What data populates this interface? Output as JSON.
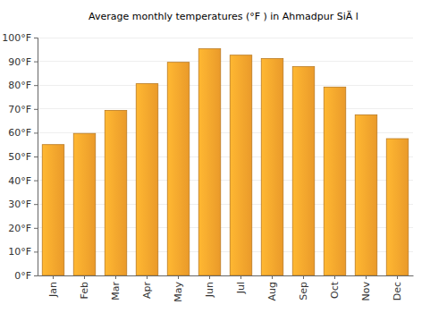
{
  "chart_data": {
    "type": "bar",
    "title": "Average monthly temperatures (°F ) in Ahmadpur SiÄ l",
    "categories": [
      "Jan",
      "Feb",
      "Mar",
      "Apr",
      "May",
      "Jun",
      "Jul",
      "Aug",
      "Sep",
      "Oct",
      "Nov",
      "Dec"
    ],
    "values": [
      55,
      59.7,
      69.4,
      80.6,
      89.6,
      95.3,
      92.6,
      91.2,
      87.8,
      79.2,
      67.5,
      57.5
    ],
    "color": "#f7a22c",
    "ylim": [
      0,
      100
    ],
    "yticks": [
      {
        "value": 0,
        "label": "0°F"
      },
      {
        "value": 10,
        "label": "10°F"
      },
      {
        "value": 20,
        "label": "20°F"
      },
      {
        "value": 30,
        "label": "30°F"
      },
      {
        "value": 40,
        "label": "40°F"
      },
      {
        "value": 50,
        "label": "50°F"
      },
      {
        "value": 60,
        "label": "60°F"
      },
      {
        "value": 70,
        "label": "70°F"
      },
      {
        "value": 80,
        "label": "80°F"
      },
      {
        "value": 90,
        "label": "90°F"
      },
      {
        "value": 100,
        "label": "100°F"
      }
    ],
    "grid": true
  }
}
